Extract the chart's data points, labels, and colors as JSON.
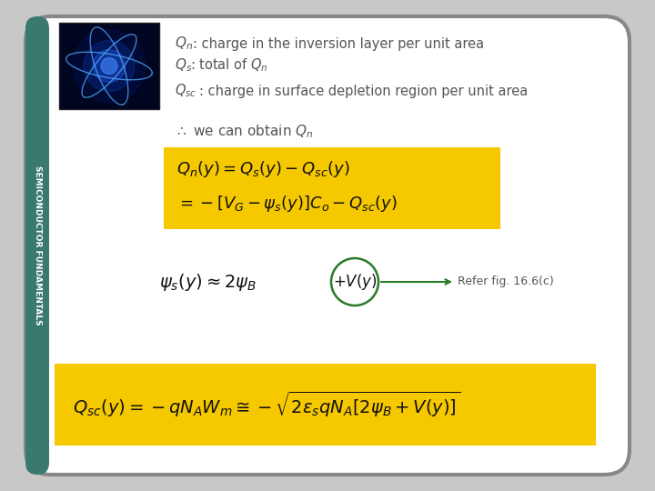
{
  "background_color": "#c8c8c8",
  "panel_color": "#ffffff",
  "sidebar_color": "#3a7a6e",
  "title_sidebar": "SEMICONDUCTOR FUNDAMENTALS",
  "yellow_color": "#F5C800",
  "circle_color": "#2a7a2a",
  "ref_text": "Refer fig. 16.6(c)",
  "text_color": "#555555",
  "formula_color": "#111111"
}
